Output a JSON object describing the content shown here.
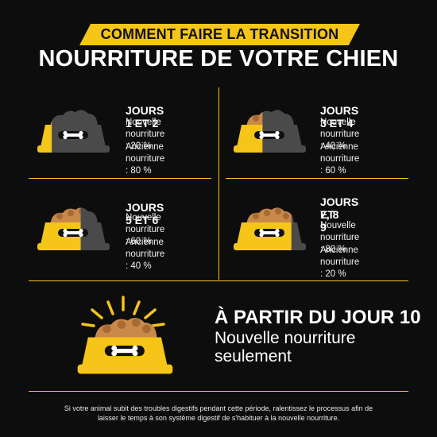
{
  "header": {
    "banner": "COMMENT FAIRE LA TRANSITION",
    "title": "NOURRITURE DE VOTRE CHIEN"
  },
  "colors": {
    "accent": "#f5c518",
    "old_food": "#4a4a4a",
    "background": "#0d0d0d",
    "kibble": "#c8894a"
  },
  "steps": [
    {
      "title": "JOURS 1 ET 2",
      "new_label": "Nouvelle",
      "new_value": "nourriture : 20 %",
      "old_label": "Ancienne",
      "old_value": "nourriture : 80 %",
      "new_share": 0.2
    },
    {
      "title": "JOURS 3 ET 4",
      "new_label": "Nouvelle",
      "new_value": "nourriture : 40 %",
      "old_label": "Ancienne",
      "old_value": "nourriture : 60 %",
      "new_share": 0.4
    },
    {
      "title": "JOURS 5 ET 6",
      "new_label": "Nouvelle",
      "new_value": "nourriture : 60 %",
      "old_label": "Ancienne",
      "old_value": "nourriture : 40 %",
      "new_share": 0.6
    },
    {
      "title_line1": "JOURS 7, 8",
      "title_line2": "ET 9",
      "new_label": "Nouvelle",
      "new_value": "nourriture : 80 %",
      "old_label": "Ancienne",
      "old_value": "nourriture : 20 %",
      "new_share": 0.8
    }
  ],
  "final": {
    "title": "À PARTIR DU JOUR 10",
    "subtitle_line1": "Nouvelle nourriture",
    "subtitle_line2": "seulement",
    "new_share": 1.0
  },
  "footnote": {
    "line1": "Si votre animal subit des troubles digestifs pendant cette période, ralentissez le processus afin de",
    "line2": "laisser le temps à son système digestif de s'habituer à la nouvelle nourriture."
  }
}
